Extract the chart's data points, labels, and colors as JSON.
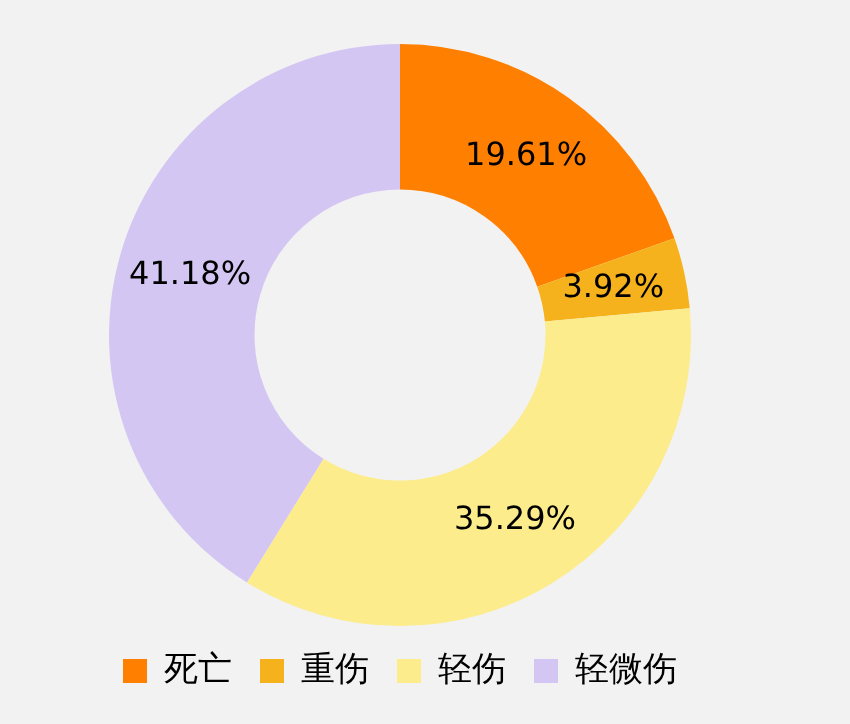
{
  "chart_data": {
    "type": "donut",
    "categories": [
      "死亡",
      "重伤",
      "轻伤",
      "轻微伤"
    ],
    "values": [
      19.61,
      3.92,
      35.29,
      41.18
    ],
    "colors": [
      "#ff8000",
      "#f5b21c",
      "#fcec8c",
      "#d4c6f2"
    ],
    "value_labels": [
      "19.61%",
      "3.92%",
      "35.29%",
      "41.18%"
    ],
    "legend": "bottom"
  }
}
